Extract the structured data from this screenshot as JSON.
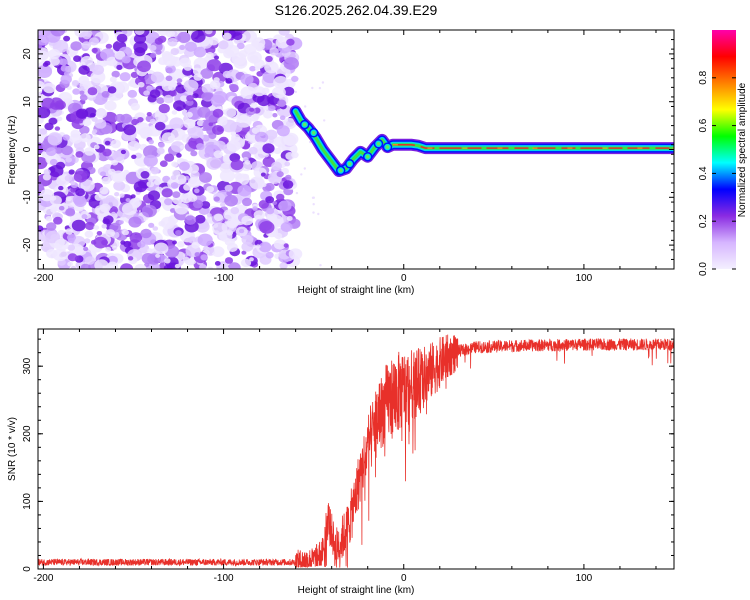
{
  "chart_data": [
    {
      "type": "heatmap",
      "title": "S126.2025.262.04.39.E29",
      "xlabel": "Height of straight line (km)",
      "ylabel": "Frequency (Hz)",
      "xlim": [
        -203,
        150
      ],
      "ylim": [
        -25,
        25
      ],
      "xticks": [
        -200,
        -100,
        0,
        100
      ],
      "xtick_labels": [
        "-200",
        "-100",
        "0",
        "100"
      ],
      "yticks": [
        -20,
        -10,
        0,
        10,
        20
      ],
      "ytick_labels": [
        "-20",
        "-10",
        "0",
        "10",
        "20"
      ],
      "noise_region": [
        -203,
        -60
      ],
      "ridge_path": [
        [
          -60,
          8
        ],
        [
          -57,
          6
        ],
        [
          -53,
          4.5
        ],
        [
          -49,
          2.5
        ],
        [
          -45,
          0
        ],
        [
          -40,
          -2.5
        ],
        [
          -36,
          -4.5
        ],
        [
          -32,
          -4
        ],
        [
          -28,
          -2
        ],
        [
          -24,
          -0.5
        ],
        [
          -20,
          -1.5
        ],
        [
          -16,
          0.5
        ],
        [
          -12,
          2
        ],
        [
          -9,
          0.5
        ],
        [
          -6,
          1
        ],
        [
          0,
          1
        ],
        [
          4,
          1
        ],
        [
          8,
          0.8
        ],
        [
          12,
          0.3
        ],
        [
          20,
          0.3
        ],
        [
          60,
          0.3
        ],
        [
          100,
          0.3
        ],
        [
          150,
          0.3
        ]
      ],
      "colorbar": {
        "label": "Normalized spectral amplitude",
        "range": [
          0,
          1
        ],
        "ticks": [
          0.0,
          0.2,
          0.4,
          0.6,
          0.8
        ],
        "tick_labels": [
          "0.0",
          "0.2",
          "0.4",
          "0.6",
          "0.8"
        ],
        "stops": [
          "#f4f0ff",
          "#d6b5ff",
          "#8a2be2",
          "#0000ff",
          "#00ffff",
          "#00ff00",
          "#ffff00",
          "#ff8000",
          "#ff0000",
          "#ff00aa"
        ]
      }
    },
    {
      "type": "line",
      "xlabel": "Height of straight line (km)",
      "ylabel": "SNR (10 * v/v)",
      "xlim": [
        -203,
        150
      ],
      "ylim": [
        0,
        355
      ],
      "xticks": [
        -200,
        -100,
        0,
        100
      ],
      "xtick_labels": [
        "-200",
        "-100",
        "0",
        "100"
      ],
      "yticks": [
        0,
        100,
        200,
        300
      ],
      "ytick_labels": [
        "0",
        "100",
        "200",
        "300"
      ],
      "series": [
        {
          "name": "SNR",
          "color": "#e8302a",
          "envelope": [
            [
              -203,
              10
            ],
            [
              -60,
              10
            ],
            [
              -50,
              14
            ],
            [
              -45,
              25
            ],
            [
              -42,
              80
            ],
            [
              -38,
              30
            ],
            [
              -32,
              55
            ],
            [
              -28,
              90
            ],
            [
              -25,
              130
            ],
            [
              -20,
              180
            ],
            [
              -15,
              220
            ],
            [
              -10,
              245
            ],
            [
              -5,
              258
            ],
            [
              0,
              265
            ],
            [
              5,
              272
            ],
            [
              10,
              280
            ],
            [
              15,
              292
            ],
            [
              20,
              305
            ],
            [
              25,
              315
            ],
            [
              30,
              322
            ],
            [
              40,
              328
            ],
            [
              60,
              330
            ],
            [
              100,
              332
            ],
            [
              150,
              332
            ]
          ]
        }
      ]
    }
  ]
}
